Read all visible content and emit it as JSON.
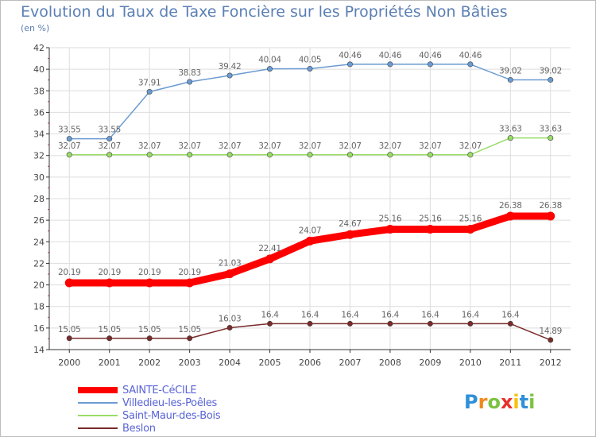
{
  "chart_data": {
    "type": "line",
    "title": "Evolution du Taux de Taxe Foncière sur les Propriétés Non Bâties",
    "ylabel": "(en %)",
    "xlabel": "",
    "x": [
      "2000",
      "2001",
      "2002",
      "2003",
      "2004",
      "2005",
      "2006",
      "2007",
      "2008",
      "2009",
      "2010",
      "2011",
      "2012"
    ],
    "ylim": [
      14,
      42
    ],
    "yticks": [
      14,
      16,
      18,
      20,
      22,
      24,
      26,
      28,
      30,
      32,
      34,
      36,
      38,
      40,
      42
    ],
    "grid": true,
    "legend_position": "bottom-left",
    "series": [
      {
        "name": "SAINTE-CéCILE",
        "color": "#ff0000",
        "values": [
          20.19,
          20.19,
          20.19,
          20.19,
          21.03,
          22.41,
          24.07,
          24.67,
          25.16,
          25.16,
          25.16,
          26.38,
          26.38
        ],
        "labels": [
          "20.19",
          "20.19",
          "20.19",
          "20.19",
          "21.03",
          "22.41",
          "24.07",
          "24.67",
          "25.16",
          "25.16",
          "25.16",
          "26.38",
          "26.38"
        ]
      },
      {
        "name": "Villedieu-les-Poêles",
        "color": "#6b9bd2",
        "values": [
          33.55,
          33.55,
          37.91,
          38.83,
          39.42,
          40.04,
          40.05,
          40.46,
          40.46,
          40.46,
          40.46,
          39.02,
          39.02
        ],
        "labels": [
          "33.55",
          "33.55",
          "37.91",
          "38.83",
          "39.42",
          "40.04",
          "40.05",
          "40.46",
          "40.46",
          "40.46",
          "40.46",
          "39.02",
          "39.02"
        ]
      },
      {
        "name": "Saint-Maur-des-Bois",
        "color": "#99dd66",
        "values": [
          32.07,
          32.07,
          32.07,
          32.07,
          32.07,
          32.07,
          32.07,
          32.07,
          32.07,
          32.07,
          32.07,
          33.63,
          33.63
        ],
        "labels": [
          "32.07",
          "32.07",
          "32.07",
          "32.07",
          "32.07",
          "32.07",
          "32.07",
          "32.07",
          "32.07",
          "32.07",
          "32.07",
          "33.63",
          "33.63"
        ]
      },
      {
        "name": "Beslon",
        "color": "#7a2b2b",
        "values": [
          15.05,
          15.05,
          15.05,
          15.05,
          16.03,
          16.4,
          16.4,
          16.4,
          16.4,
          16.4,
          16.4,
          16.4,
          14.89
        ],
        "labels": [
          "15.05",
          "15.05",
          "15.05",
          "15.05",
          "16.03",
          "16.4",
          "16.4",
          "16.4",
          "16.4",
          "16.4",
          "16.4",
          "16.4",
          "14.89"
        ]
      }
    ]
  },
  "legend": {
    "items": [
      {
        "label": "SAINTE-CéCILE",
        "color": "#ff0000"
      },
      {
        "label": "Villedieu-les-Poêles",
        "color": "#6b9bd2"
      },
      {
        "label": "Saint-Maur-des-Bois",
        "color": "#99dd66"
      },
      {
        "label": "Beslon",
        "color": "#7a2b2b"
      }
    ]
  },
  "logo": {
    "letters": [
      "P",
      "r",
      "o",
      "x",
      "i",
      "t",
      "i"
    ],
    "colors": [
      "#2f8fd8",
      "#f08a1c",
      "#7cc242",
      "#e8312b",
      "#f4c20d",
      "#2f8fd8",
      "#7cc242"
    ]
  }
}
